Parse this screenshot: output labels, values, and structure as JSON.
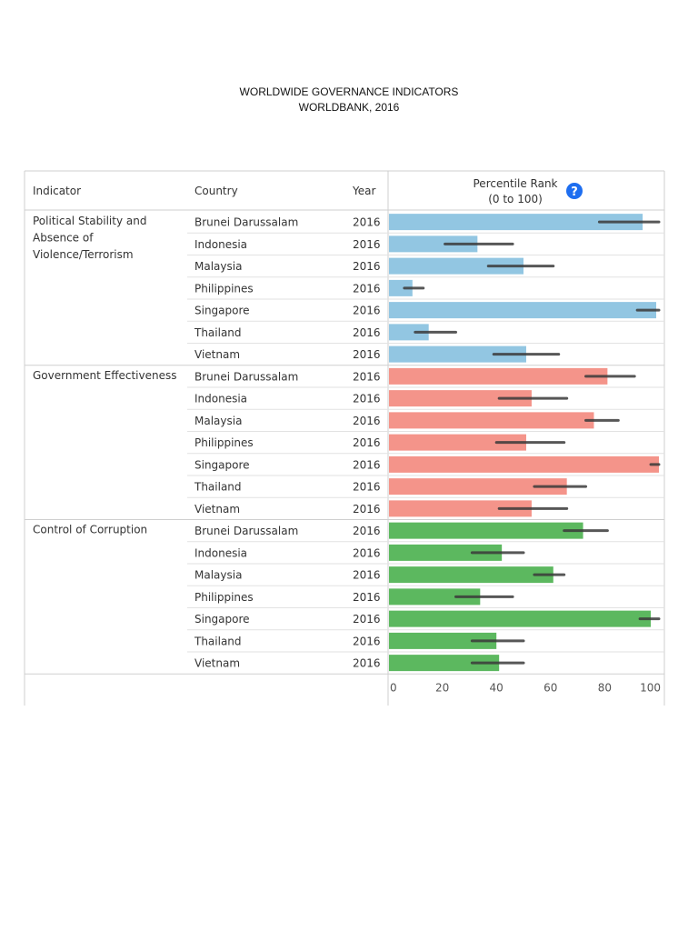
{
  "page": {
    "title_line1": "WORLDWIDE GOVERNANCE INDICATORS",
    "title_line2": "WORLDBANK, 2016"
  },
  "table": {
    "col_indicator": "Indicator",
    "col_country": "Country",
    "col_year": "Year",
    "col_rank_line1": "Percentile Rank",
    "col_rank_line2": "(0 to 100)",
    "help_icon": "question-mark-icon"
  },
  "colors": {
    "political": "#92c6e2",
    "government": "#f4948a",
    "corruption": "#5cb85f",
    "error_bar": "#3a3a3a",
    "help_icon": "#1e6ef0"
  },
  "chart_data": {
    "type": "bar",
    "xlim": [
      0,
      100
    ],
    "x_ticks": [
      "0",
      "20",
      "40",
      "60",
      "80",
      "100"
    ],
    "groups": [
      {
        "indicator": [
          "Political Stability and",
          "Absence of",
          "Violence/Terrorism"
        ],
        "color_key": "political",
        "rows": [
          {
            "country": "Brunei Darussalam",
            "year": "2016",
            "value": 94,
            "low": 78,
            "high": 100
          },
          {
            "country": "Indonesia",
            "year": "2016",
            "value": 33,
            "low": 21,
            "high": 46
          },
          {
            "country": "Malaysia",
            "year": "2016",
            "value": 50,
            "low": 37,
            "high": 61
          },
          {
            "country": "Philippines",
            "year": "2016",
            "value": 9,
            "low": 6,
            "high": 13
          },
          {
            "country": "Singapore",
            "year": "2016",
            "value": 99,
            "low": 92,
            "high": 100
          },
          {
            "country": "Thailand",
            "year": "2016",
            "value": 15,
            "low": 10,
            "high": 25
          },
          {
            "country": "Vietnam",
            "year": "2016",
            "value": 51,
            "low": 39,
            "high": 63
          }
        ]
      },
      {
        "indicator": [
          "Government Effectiveness"
        ],
        "color_key": "government",
        "rows": [
          {
            "country": "Brunei Darussalam",
            "year": "2016",
            "value": 81,
            "low": 73,
            "high": 91
          },
          {
            "country": "Indonesia",
            "year": "2016",
            "value": 53,
            "low": 41,
            "high": 66
          },
          {
            "country": "Malaysia",
            "year": "2016",
            "value": 76,
            "low": 73,
            "high": 85
          },
          {
            "country": "Philippines",
            "year": "2016",
            "value": 51,
            "low": 40,
            "high": 65
          },
          {
            "country": "Singapore",
            "year": "2016",
            "value": 100,
            "low": 97,
            "high": 100
          },
          {
            "country": "Thailand",
            "year": "2016",
            "value": 66,
            "low": 54,
            "high": 73
          },
          {
            "country": "Vietnam",
            "year": "2016",
            "value": 53,
            "low": 41,
            "high": 66
          }
        ]
      },
      {
        "indicator": [
          "Control of Corruption"
        ],
        "color_key": "corruption",
        "rows": [
          {
            "country": "Brunei Darussalam",
            "year": "2016",
            "value": 72,
            "low": 65,
            "high": 81
          },
          {
            "country": "Indonesia",
            "year": "2016",
            "value": 42,
            "low": 31,
            "high": 50
          },
          {
            "country": "Malaysia",
            "year": "2016",
            "value": 61,
            "low": 54,
            "high": 65
          },
          {
            "country": "Philippines",
            "year": "2016",
            "value": 34,
            "low": 25,
            "high": 46
          },
          {
            "country": "Singapore",
            "year": "2016",
            "value": 97,
            "low": 93,
            "high": 100
          },
          {
            "country": "Thailand",
            "year": "2016",
            "value": 40,
            "low": 31,
            "high": 50
          },
          {
            "country": "Vietnam",
            "year": "2016",
            "value": 41,
            "low": 31,
            "high": 50
          }
        ]
      }
    ]
  }
}
